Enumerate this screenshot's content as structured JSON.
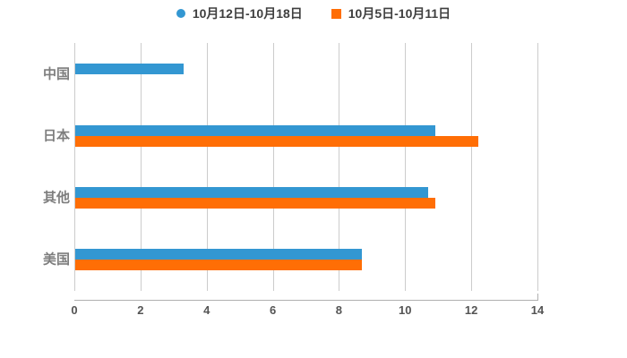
{
  "chart_data": {
    "type": "bar",
    "orientation": "horizontal",
    "title": "",
    "xlabel": "",
    "ylabel": "",
    "categories": [
      "中国",
      "日本",
      "其他",
      "美国"
    ],
    "series": [
      {
        "name": "10月12日-10月18日",
        "marker": "circle",
        "color": "#3397d2",
        "values": [
          3.3,
          10.9,
          10.7,
          8.7
        ]
      },
      {
        "name": "10月5日-10月11日",
        "marker": "square",
        "color": "#ff6e05",
        "values": [
          0,
          12.2,
          10.9,
          8.7
        ]
      }
    ],
    "xlim": [
      0,
      14
    ],
    "x_ticks": [
      0,
      2,
      4,
      6,
      8,
      10,
      12,
      14
    ],
    "grid": true,
    "legend_position": "top-center"
  },
  "colors": {
    "background": "#ffffff",
    "gridline": "#cccccc",
    "axis_line": "#b0b0b0",
    "tick_label": "#545454",
    "category_label": "#7e7e7e",
    "legend_text": "#3f3f3f"
  }
}
